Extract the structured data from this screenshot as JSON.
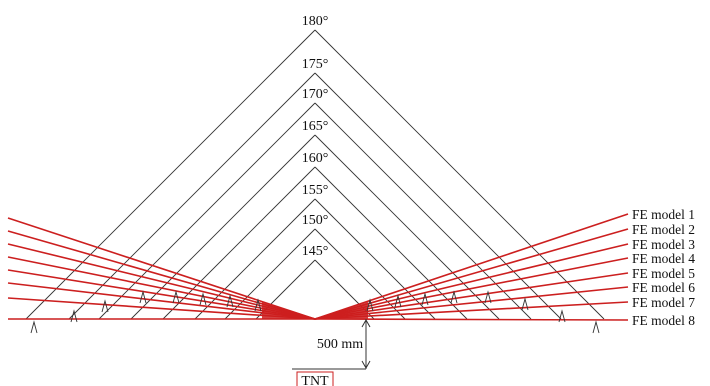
{
  "angle_labels": [
    {
      "angle": 180,
      "text": "180°"
    },
    {
      "angle": 175,
      "text": "175°"
    },
    {
      "angle": 170,
      "text": "170°"
    },
    {
      "angle": 165,
      "text": "165°"
    },
    {
      "angle": 160,
      "text": "160°"
    },
    {
      "angle": 155,
      "text": "155°"
    },
    {
      "angle": 150,
      "text": "150°"
    },
    {
      "angle": 145,
      "text": "145°"
    }
  ],
  "models": [
    {
      "label": "FE model 1"
    },
    {
      "label": "FE model 2"
    },
    {
      "label": "FE model 3"
    },
    {
      "label": "FE model 4"
    },
    {
      "label": "FE model 5"
    },
    {
      "label": "FE model 6"
    },
    {
      "label": "FE model 7"
    },
    {
      "label": "FE model 8"
    }
  ],
  "standoff_label": "500 mm",
  "charge_label": "TNT",
  "colors": {
    "beam": "#cc1f1f",
    "line": "#333333",
    "text": "#111111",
    "background": "#ffffff"
  }
}
